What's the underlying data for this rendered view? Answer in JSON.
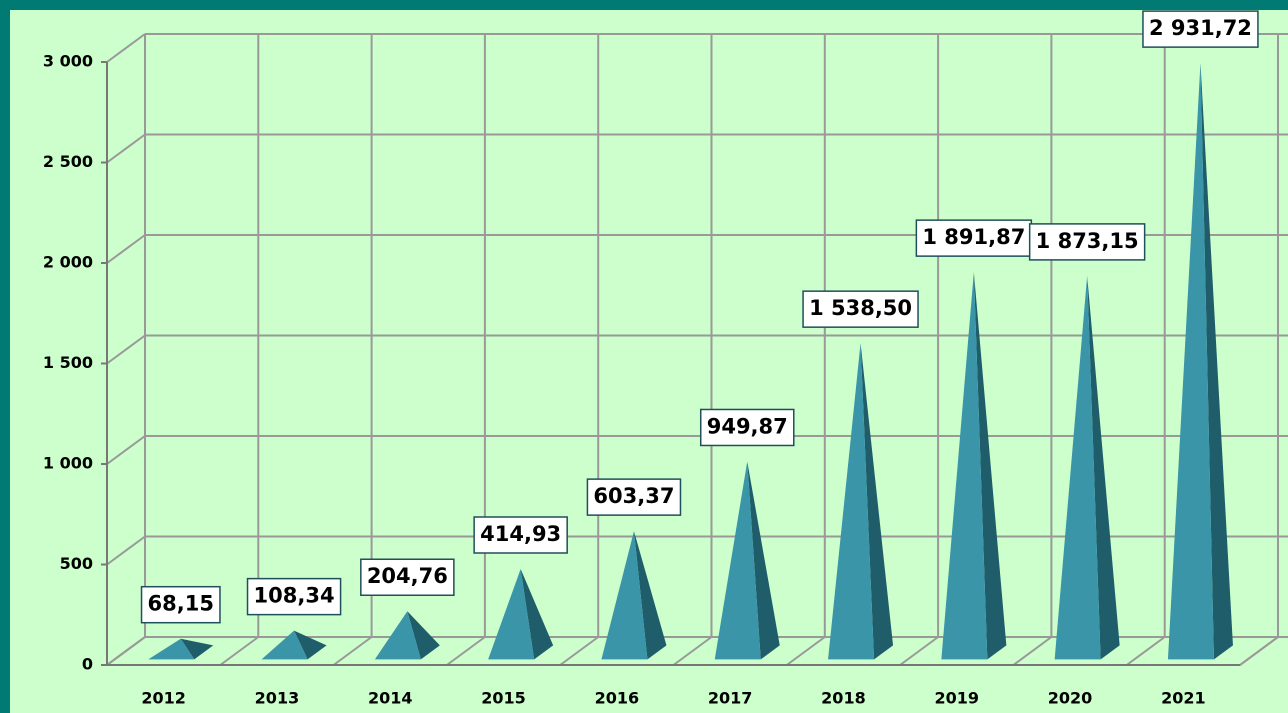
{
  "chart_data": {
    "type": "bar",
    "style": "3d-pyramid",
    "categories": [
      "2012",
      "2013",
      "2014",
      "2015",
      "2016",
      "2017",
      "2018",
      "2019",
      "2020",
      "2021"
    ],
    "values": [
      68.15,
      108.34,
      204.76,
      414.93,
      603.37,
      949.87,
      1538.5,
      1891.87,
      1873.15,
      2931.72
    ],
    "value_labels": [
      "68,15",
      "108,34",
      "204,76",
      "414,93",
      "603,37",
      "949,87",
      "1 538,50",
      "1 891,87",
      "1 873,15",
      "2 931,72"
    ],
    "color": "#3a95a8",
    "ylim": [
      0,
      3000
    ],
    "yticks": [
      0,
      500,
      {
        "value": 1000,
        "label": "1 000"
      },
      {
        "value": 1500,
        "label": "1 500"
      },
      {
        "value": 2000,
        "label": "2 000"
      },
      {
        "value": 2500,
        "label": "2 500"
      },
      {
        "value": 3000,
        "label": "3 000"
      }
    ],
    "grid": true
  }
}
